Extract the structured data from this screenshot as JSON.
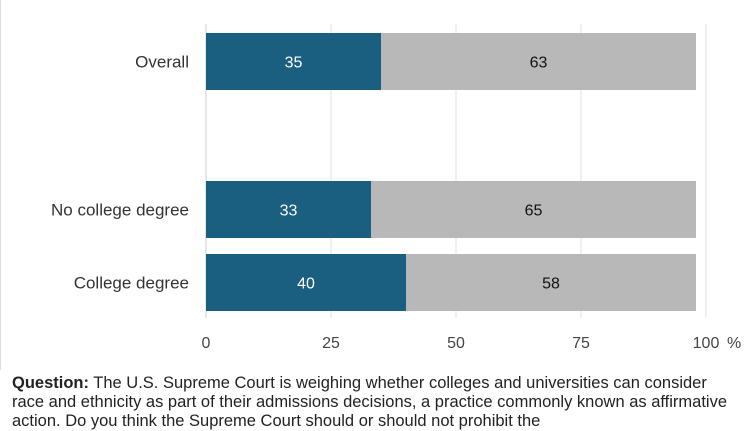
{
  "chart_data": {
    "type": "bar",
    "orientation": "horizontal",
    "stacked": true,
    "categories": [
      "Overall",
      "No college degree",
      "College degree"
    ],
    "series": [
      {
        "values": [
          35,
          33,
          40
        ]
      },
      {
        "values": [
          63,
          65,
          58
        ]
      }
    ],
    "colors": [
      "#1a5e80",
      "#b8b8b8"
    ],
    "label_colors": [
      "#ffffff",
      "#111111"
    ],
    "xlim": [
      0,
      100
    ],
    "xticks": [
      "0",
      "25",
      "50",
      "75",
      "100"
    ],
    "x_unit": "%",
    "grid": true
  },
  "caption": {
    "lead": "Question:",
    "text": " The U.S. Supreme Court is weighing whether colleges and universities can consider race and ethnicity as part of their admissions decisions, a practice commonly known as affirmative action. Do you think the Supreme Court should or should not prohibit the"
  }
}
